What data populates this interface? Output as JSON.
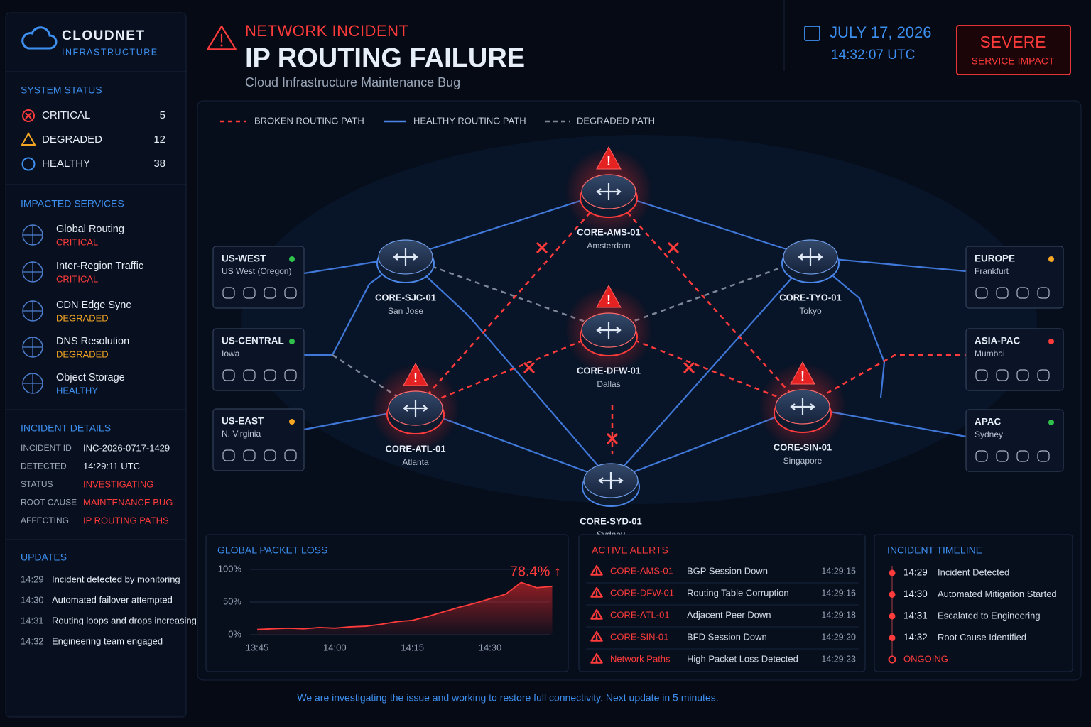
{
  "brand": {
    "name": "CLOUDNET",
    "sub": "INFRASTRUCTURE"
  },
  "header": {
    "kicker": "NETWORK INCIDENT",
    "title": "IP ROUTING FAILURE",
    "subtitle": "Cloud Infrastructure Maintenance Bug",
    "date": "JULY 17, 2026",
    "time": "14:32:07 UTC",
    "severity": "SEVERE",
    "impact": "SERVICE IMPACT"
  },
  "system_status": {
    "title": "SYSTEM STATUS",
    "items": [
      {
        "label": "CRITICAL",
        "count": 5
      },
      {
        "label": "DEGRADED",
        "count": 12
      },
      {
        "label": "HEALTHY",
        "count": 38
      }
    ]
  },
  "impacted_services": {
    "title": "IMPACTED SERVICES",
    "items": [
      {
        "name": "Global Routing",
        "status": "CRITICAL"
      },
      {
        "name": "Inter-Region Traffic",
        "status": "CRITICAL"
      },
      {
        "name": "CDN Edge Sync",
        "status": "DEGRADED"
      },
      {
        "name": "DNS Resolution",
        "status": "DEGRADED"
      },
      {
        "name": "Object Storage",
        "status": "HEALTHY"
      }
    ]
  },
  "incident_details": {
    "title": "INCIDENT DETAILS",
    "rows": [
      [
        "INCIDENT ID",
        "INC-2026-0717-1429"
      ],
      [
        "DETECTED",
        "14:29:11 UTC"
      ],
      [
        "STATUS",
        "INVESTIGATING"
      ],
      [
        "ROOT CAUSE",
        "MAINTENANCE BUG"
      ],
      [
        "AFFECTING",
        "IP ROUTING PATHS"
      ]
    ]
  },
  "updates": {
    "title": "UPDATES",
    "items": [
      [
        "14:29",
        "Incident detected by monitoring"
      ],
      [
        "14:30",
        "Automated failover attempted"
      ],
      [
        "14:31",
        "Routing loops and drops increasing"
      ],
      [
        "14:32",
        "Engineering team engaged"
      ]
    ]
  },
  "legend": [
    "BROKEN ROUTING PATH",
    "HEALTHY ROUTING PATH",
    "DEGRADED PATH"
  ],
  "regions": [
    {
      "name": "US-WEST",
      "location": "US West (Oregon)",
      "color": "#2fc14b"
    },
    {
      "name": "US-CENTRAL",
      "location": "Iowa",
      "color": "#2fc14b"
    },
    {
      "name": "US-EAST",
      "location": "N. Virginia",
      "color": "#f5a623"
    },
    {
      "name": "EUROPE",
      "location": "Frankfurt",
      "color": "#f5a623"
    },
    {
      "name": "ASIA-PAC",
      "location": "Mumbai",
      "color": "#ff3b3b"
    },
    {
      "name": "APAC",
      "location": "Sydney",
      "color": "#2fc14b"
    }
  ],
  "routers": [
    {
      "name": "CORE-AMS-01",
      "city": "Amsterdam"
    },
    {
      "name": "CORE-SJC-01",
      "city": "San Jose"
    },
    {
      "name": "CORE-TYO-01",
      "city": "Tokyo"
    },
    {
      "name": "CORE-DFW-01",
      "city": "Dallas"
    },
    {
      "name": "CORE-ATL-01",
      "city": "Atlanta"
    },
    {
      "name": "CORE-SIN-01",
      "city": "Singapore"
    },
    {
      "name": "CORE-SYD-01",
      "city": "Sydney"
    }
  ],
  "chart_data": {
    "type": "line",
    "title": "GLOBAL PACKET LOSS",
    "annotation": "78.4% ↑",
    "color": "#ff3b3b",
    "categories": [
      "13:45",
      null,
      null,
      null,
      null,
      "14:00",
      null,
      null,
      null,
      null,
      "14:15",
      null,
      null,
      null,
      null,
      "14:30",
      null,
      null,
      null,
      null
    ],
    "values": [
      8,
      9,
      10,
      9,
      11,
      10,
      12,
      13,
      16,
      20,
      22,
      28,
      35,
      42,
      48,
      55,
      62,
      80,
      72,
      74
    ],
    "ylim": [
      0,
      100
    ],
    "yticks": [
      {
        "value": 0,
        "label": "0%"
      },
      {
        "value": 50,
        "label": "50%"
      },
      {
        "value": 100,
        "label": "100%"
      }
    ],
    "grid": true
  },
  "alerts": {
    "title": "ACTIVE ALERTS",
    "rows": [
      {
        "source": "CORE-AMS-01",
        "message": "BGP Session Down",
        "time": "14:29:15"
      },
      {
        "source": "CORE-DFW-01",
        "message": "Routing Table Corruption",
        "time": "14:29:16"
      },
      {
        "source": "CORE-ATL-01",
        "message": "Adjacent Peer Down",
        "time": "14:29:18"
      },
      {
        "source": "CORE-SIN-01",
        "message": "BFD Session Down",
        "time": "14:29:20"
      },
      {
        "source": "Network Paths",
        "message": "High Packet Loss Detected",
        "time": "14:29:23"
      }
    ]
  },
  "timeline": {
    "title": "INCIDENT TIMELINE",
    "items": [
      [
        "14:29",
        "Incident Detected"
      ],
      [
        "14:30",
        "Automated Mitigation Started"
      ],
      [
        "14:31",
        "Escalated to Engineering"
      ],
      [
        "14:32",
        "Root Cause Identified"
      ]
    ],
    "status": "ONGOING"
  },
  "footer": "We are investigating the issue and working to restore full connectivity. Next update in 5 minutes."
}
